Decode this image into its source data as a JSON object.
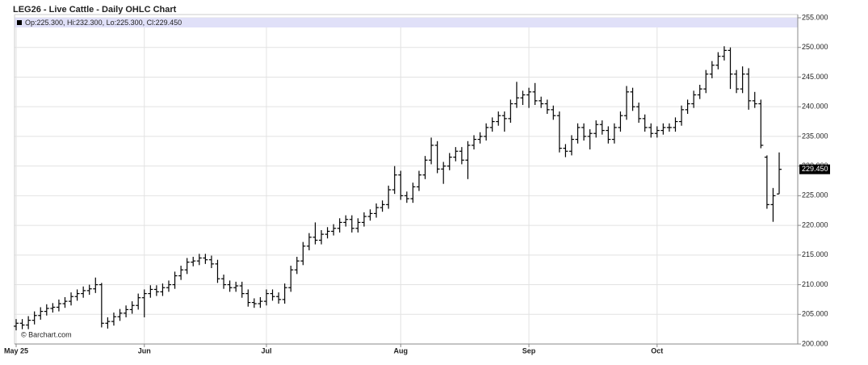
{
  "chart_data": {
    "type": "ohlc",
    "title": "LEG26 - Live Cattle - Daily OHLC Chart",
    "legend_text": "Op:225.300, Hi:232.300, Lo:225.300, Cl:229.450",
    "watermark": "© Barchart.com",
    "color": "#000000",
    "grid": true,
    "categories": [
      "May 25",
      null,
      null,
      null,
      null,
      null,
      null,
      null,
      null,
      null,
      null,
      null,
      null,
      null,
      null,
      null,
      null,
      null,
      null,
      null,
      null,
      "Jun",
      null,
      null,
      null,
      null,
      null,
      null,
      null,
      null,
      null,
      null,
      null,
      null,
      null,
      null,
      null,
      null,
      null,
      null,
      null,
      "Jul",
      null,
      null,
      null,
      null,
      null,
      null,
      null,
      null,
      null,
      null,
      null,
      null,
      null,
      null,
      null,
      null,
      null,
      null,
      null,
      null,
      null,
      "Aug",
      null,
      null,
      null,
      null,
      null,
      null,
      null,
      null,
      null,
      null,
      null,
      null,
      null,
      null,
      null,
      null,
      null,
      null,
      null,
      null,
      "Sep",
      null,
      null,
      null,
      null,
      null,
      null,
      null,
      null,
      null,
      null,
      null,
      null,
      null,
      null,
      null,
      null,
      null,
      null,
      null,
      null,
      "Oct",
      null,
      null,
      null,
      null,
      null,
      null,
      null,
      null,
      null,
      null,
      null,
      null,
      null,
      null,
      null,
      null,
      null,
      null,
      null,
      null
    ],
    "open": [
      203.0,
      203.5,
      203.2,
      204.0,
      204.8,
      205.5,
      206.0,
      206.2,
      206.8,
      207.2,
      208.0,
      208.5,
      209.0,
      209.3,
      210.0,
      203.5,
      203.8,
      204.6,
      205.2,
      205.8,
      206.5,
      207.8,
      208.5,
      209.2,
      208.8,
      209.5,
      210.0,
      211.5,
      212.5,
      213.8,
      214.0,
      214.5,
      214.2,
      213.5,
      211.0,
      210.0,
      209.5,
      209.8,
      208.5,
      207.0,
      206.8,
      207.2,
      208.5,
      208.0,
      207.5,
      209.5,
      212.5,
      214.0,
      216.5,
      218.0,
      217.5,
      218.5,
      219.0,
      219.5,
      220.5,
      221.0,
      219.5,
      220.5,
      221.5,
      222.0,
      223.0,
      223.5,
      226.0,
      228.5,
      225.0,
      224.5,
      226.5,
      228.5,
      231.0,
      233.5,
      229.5,
      230.0,
      231.5,
      232.5,
      231.0,
      233.5,
      234.5,
      235.0,
      236.5,
      237.5,
      238.5,
      238.0,
      240.5,
      241.5,
      242.0,
      242.5,
      241.0,
      240.5,
      239.5,
      238.5,
      233.0,
      232.5,
      234.5,
      236.5,
      235.0,
      235.5,
      237.0,
      236.0,
      234.5,
      236.5,
      238.5,
      242.5,
      240.0,
      238.0,
      236.5,
      235.5,
      236.0,
      236.5,
      236.5,
      237.5,
      239.5,
      240.5,
      242.0,
      243.0,
      245.5,
      247.0,
      248.5,
      249.5,
      245.5,
      243.0,
      245.5,
      241.0,
      240.5,
      231.5,
      223.5,
      225.3
    ],
    "high": [
      204.2,
      204.2,
      204.7,
      205.5,
      206.2,
      206.7,
      206.9,
      207.5,
      207.9,
      208.7,
      209.2,
      209.7,
      210.0,
      211.2,
      210.3,
      204.5,
      205.3,
      205.9,
      206.5,
      207.2,
      208.5,
      209.2,
      209.9,
      209.9,
      210.2,
      210.7,
      212.2,
      213.2,
      214.5,
      214.7,
      215.2,
      215.2,
      214.9,
      214.2,
      211.7,
      210.7,
      210.5,
      210.5,
      209.2,
      207.7,
      207.9,
      209.2,
      209.2,
      208.7,
      210.2,
      213.2,
      214.7,
      217.2,
      218.7,
      220.5,
      219.2,
      219.7,
      220.2,
      221.2,
      221.7,
      221.7,
      221.2,
      222.2,
      222.7,
      223.7,
      224.2,
      226.7,
      230.0,
      229.2,
      225.7,
      227.2,
      229.2,
      231.7,
      234.8,
      234.2,
      230.7,
      232.2,
      233.2,
      233.2,
      234.2,
      235.2,
      235.7,
      237.2,
      238.2,
      239.2,
      239.2,
      241.2,
      244.2,
      242.7,
      243.2,
      244.0,
      241.7,
      241.2,
      240.2,
      239.2,
      233.7,
      235.2,
      237.2,
      237.2,
      236.2,
      237.7,
      237.7,
      236.7,
      237.2,
      239.2,
      243.5,
      243.2,
      240.7,
      238.7,
      237.2,
      236.7,
      237.2,
      237.2,
      238.2,
      240.2,
      241.2,
      242.7,
      243.7,
      246.2,
      247.7,
      249.2,
      250.2,
      250.0,
      246.2,
      246.8,
      246.5,
      242.5,
      241.2,
      231.8,
      226.3,
      232.3
    ],
    "low": [
      202.3,
      202.5,
      202.5,
      203.3,
      204.1,
      204.8,
      205.3,
      205.5,
      206.1,
      206.5,
      207.3,
      207.8,
      208.3,
      208.6,
      202.8,
      202.6,
      203.1,
      203.9,
      204.5,
      205.1,
      205.8,
      204.5,
      207.8,
      208.1,
      208.1,
      208.8,
      209.3,
      210.8,
      211.8,
      213.1,
      213.3,
      213.5,
      212.8,
      210.3,
      209.3,
      208.8,
      208.8,
      207.8,
      206.3,
      206.1,
      206.1,
      206.5,
      207.3,
      206.8,
      206.8,
      208.8,
      211.8,
      213.3,
      215.8,
      216.8,
      216.8,
      217.8,
      218.3,
      218.8,
      219.8,
      218.8,
      218.8,
      219.8,
      220.8,
      221.3,
      222.3,
      222.8,
      225.3,
      224.3,
      223.8,
      223.8,
      225.8,
      227.8,
      230.3,
      228.8,
      227.0,
      229.3,
      230.8,
      230.3,
      227.8,
      232.8,
      233.8,
      234.3,
      235.8,
      236.8,
      235.8,
      237.3,
      239.8,
      240.3,
      239.8,
      240.3,
      239.8,
      238.8,
      237.8,
      232.3,
      231.5,
      231.8,
      233.8,
      234.3,
      232.8,
      234.8,
      235.3,
      233.8,
      233.8,
      235.8,
      237.8,
      239.3,
      237.3,
      235.8,
      234.8,
      234.8,
      235.3,
      235.8,
      235.8,
      236.8,
      238.8,
      239.8,
      241.3,
      242.3,
      244.8,
      246.3,
      247.8,
      243.0,
      242.3,
      242.3,
      239.5,
      239.8,
      233.0,
      222.8,
      220.6,
      225.3
    ],
    "close": [
      203.5,
      203.2,
      204.0,
      204.8,
      205.5,
      206.0,
      206.2,
      206.8,
      207.2,
      208.0,
      208.5,
      209.0,
      209.3,
      210.0,
      203.5,
      203.8,
      204.6,
      205.2,
      205.8,
      206.5,
      207.8,
      208.5,
      209.2,
      208.8,
      209.5,
      210.0,
      211.5,
      212.5,
      213.8,
      214.0,
      214.5,
      214.2,
      213.5,
      211.0,
      210.0,
      209.5,
      209.8,
      208.5,
      207.0,
      206.8,
      207.2,
      208.5,
      208.0,
      207.5,
      209.5,
      212.5,
      214.0,
      216.5,
      218.0,
      217.5,
      218.5,
      219.0,
      219.5,
      220.5,
      221.0,
      219.5,
      220.5,
      221.5,
      222.0,
      223.0,
      223.5,
      226.0,
      228.5,
      225.0,
      224.5,
      226.5,
      228.5,
      231.0,
      233.5,
      229.5,
      230.0,
      231.5,
      232.5,
      231.0,
      233.5,
      234.5,
      235.0,
      236.5,
      237.5,
      238.5,
      238.0,
      240.5,
      241.5,
      242.0,
      242.5,
      241.0,
      240.5,
      239.5,
      238.5,
      233.0,
      232.5,
      234.5,
      236.5,
      235.0,
      235.5,
      237.0,
      236.0,
      234.5,
      236.5,
      238.5,
      242.5,
      240.0,
      238.0,
      236.5,
      235.5,
      236.0,
      236.5,
      236.5,
      237.5,
      239.5,
      240.5,
      242.0,
      243.0,
      245.5,
      247.0,
      248.5,
      249.5,
      245.5,
      243.0,
      245.5,
      241.0,
      240.5,
      233.5,
      223.5,
      225.0,
      229.45
    ],
    "last_price": {
      "value": 229.45,
      "label": "229.450"
    },
    "ylim": [
      200,
      255
    ],
    "yticks": [
      {
        "value": 200,
        "label": "200.000"
      },
      {
        "value": 205,
        "label": "205.000"
      },
      {
        "value": 210,
        "label": "210.000"
      },
      {
        "value": 215,
        "label": "215.000"
      },
      {
        "value": 220,
        "label": "220.000"
      },
      {
        "value": 225,
        "label": "225.000"
      },
      {
        "value": 230,
        "label": "230.000"
      },
      {
        "value": 235,
        "label": "235.000"
      },
      {
        "value": 240,
        "label": "240.000"
      },
      {
        "value": 245,
        "label": "245.000"
      },
      {
        "value": 250,
        "label": "250.000"
      },
      {
        "value": 255,
        "label": "255.000"
      }
    ]
  }
}
